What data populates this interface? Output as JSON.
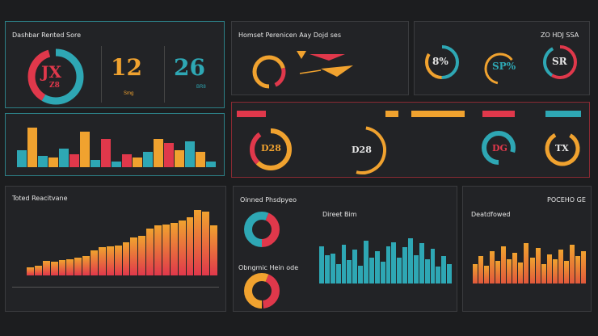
{
  "colors": {
    "teal": "#2ea7b4",
    "red": "#e0384b",
    "orange": "#f0a22f",
    "yellow": "#e8b337",
    "dark": "#222326"
  },
  "panels": {
    "top_left": {
      "title": "Dashbar Rented Sore",
      "kpi1": "12",
      "kpi2": "26",
      "ring_label": "JX",
      "ring_sub": "Z8",
      "kpi1_sub": "Smg",
      "kpi2_sub": "BR8"
    },
    "top_mid": {
      "title": "Homset Perenicen Aay Dojd ses"
    },
    "top_right": {
      "title": "ZO HDJ SSA",
      "ring1": "8%",
      "ring2": "SP%",
      "ring3": "SR"
    },
    "row2_mid": {
      "ring1": "D28",
      "ring2": "D28",
      "ring3": "DG",
      "ring4": "TX"
    },
    "bottom_left": {
      "title": "Toted Reacitvane"
    },
    "bottom_mid": {
      "title": "Oinned Phsdpyeo",
      "sub_title": "Obngmic Hein ode",
      "chart_title": "Direet Bim"
    },
    "bottom_right": {
      "title": "POCEHO GE",
      "chart_title": "Deatdfowed"
    }
  },
  "chart_data": [
    {
      "type": "bar",
      "values": [
        18,
        42,
        12,
        10,
        20,
        14,
        38,
        8,
        30,
        6,
        14,
        10,
        16,
        30,
        26,
        18,
        28,
        16,
        6
      ],
      "colors": [
        "teal",
        "orange",
        "teal",
        "orange",
        "teal",
        "red",
        "orange",
        "teal",
        "red",
        "teal",
        "red",
        "orange",
        "teal",
        "orange",
        "red",
        "orange",
        "teal",
        "orange",
        "teal"
      ],
      "ylim": [
        0,
        50
      ]
    },
    {
      "type": "bar",
      "values": [
        20,
        22,
        34,
        32,
        36,
        38,
        42,
        46,
        60,
        66,
        68,
        70,
        78,
        90,
        94,
        110,
        118,
        120,
        124,
        130,
        138,
        154,
        150,
        118
      ],
      "ylim": [
        0,
        160
      ]
    },
    {
      "type": "bar",
      "values": [
        58,
        44,
        46,
        30,
        60,
        36,
        52,
        28,
        66,
        40,
        50,
        34,
        58,
        64,
        40,
        56,
        70,
        44,
        62,
        38,
        54,
        26,
        42,
        30
      ],
      "ylim": [
        0,
        80
      ]
    },
    {
      "type": "bar",
      "values": [
        24,
        34,
        22,
        40,
        28,
        46,
        30,
        38,
        26,
        50,
        32,
        44,
        24,
        36,
        30,
        42,
        28,
        48,
        34,
        40
      ],
      "ylim": [
        0,
        60
      ]
    }
  ]
}
